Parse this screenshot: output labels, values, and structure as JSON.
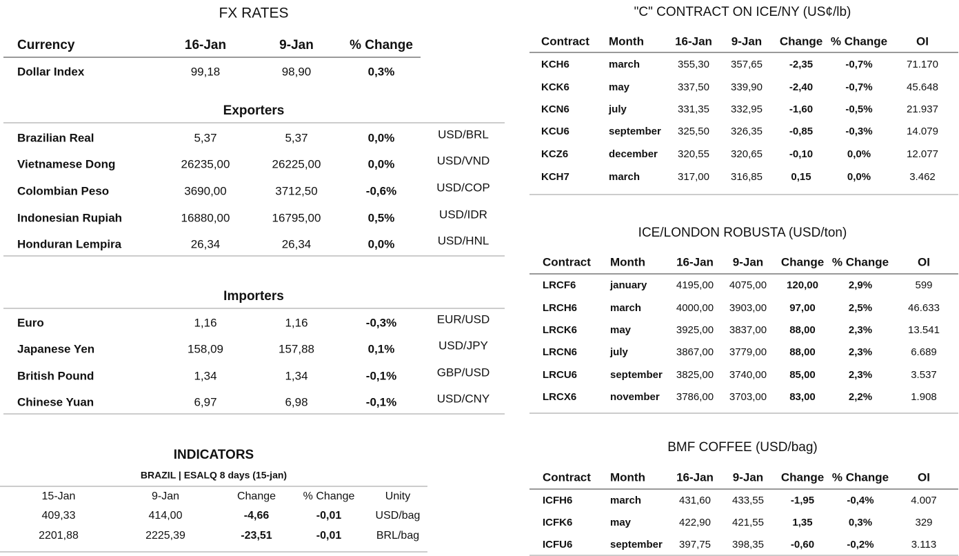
{
  "fx": {
    "title": "FX RATES",
    "header": [
      "Currency",
      "16-Jan",
      "9-Jan",
      "% Change"
    ],
    "rows": [
      {
        "cells": [
          "Dollar Index",
          "99,18",
          "98,90",
          "0,3%"
        ],
        "color": "#1f9a1f"
      }
    ],
    "exporters": {
      "title": "Exporters",
      "rows": [
        {
          "cells": [
            "Brazilian Real",
            "5,37",
            "5,37",
            "0,0%",
            "USD/BRL"
          ],
          "color": "#e00000"
        },
        {
          "cells": [
            "Vietnamese Dong",
            "26235,00",
            "26225,00",
            "0,0%",
            "USD/VND"
          ],
          "color": "#1f9a1f"
        },
        {
          "cells": [
            "Colombian Peso",
            "3690,00",
            "3712,50",
            "-0,6%",
            "USD/COP"
          ],
          "color": "#e00000"
        },
        {
          "cells": [
            "Indonesian Rupiah",
            "16880,00",
            "16795,00",
            "0,5%",
            "USD/IDR"
          ],
          "color": "#1f9a1f"
        },
        {
          "cells": [
            "Honduran Lempira",
            "26,34",
            "26,34",
            "0,0%",
            "USD/HNL"
          ],
          "color": "#1f9a1f"
        }
      ]
    },
    "importers": {
      "title": "Importers",
      "rows": [
        {
          "cells": [
            "Euro",
            "1,16",
            "1,16",
            "-0,3%",
            "EUR/USD"
          ],
          "color": "#e00000"
        },
        {
          "cells": [
            "Japanese Yen",
            "158,09",
            "157,88",
            "0,1%",
            "USD/JPY"
          ],
          "color": "#1f9a1f"
        },
        {
          "cells": [
            "British Pound",
            "1,34",
            "1,34",
            "-0,1%",
            "GBP/USD"
          ],
          "color": "#e00000"
        },
        {
          "cells": [
            "Chinese Yuan",
            "6,97",
            "6,98",
            "-0,1%",
            "USD/CNY"
          ],
          "color": "#e00000"
        }
      ]
    }
  },
  "indicators": {
    "title": "INDICATORS",
    "subtitle": "BRAZIL | ESALQ 8 days (15-jan)",
    "header": [
      "15-Jan",
      "9-Jan",
      "Change",
      "% Change",
      "Unity"
    ],
    "rows": [
      {
        "cells": [
          "409,33",
          "414,00",
          "-4,66",
          "-0,01",
          "USD/bag"
        ],
        "color": "#e00000"
      },
      {
        "cells": [
          "2201,88",
          "2225,39",
          "-23,51",
          "-0,01",
          "BRL/bag"
        ],
        "color": "#e00000"
      }
    ]
  },
  "ny": {
    "title": "\"C\" CONTRACT ON ICE/NY (US¢/lb)",
    "header": [
      "Contract",
      "Month",
      "16-Jan",
      "9-Jan",
      "Change",
      "% Change",
      "OI"
    ],
    "rows": [
      {
        "cells": [
          "KCH6",
          "march",
          "355,30",
          "357,65",
          "-2,35",
          "-0,7%",
          "71.170"
        ],
        "color": "#e00000"
      },
      {
        "cells": [
          "KCK6",
          "may",
          "337,50",
          "339,90",
          "-2,40",
          "-0,7%",
          "45.648"
        ],
        "color": "#e00000"
      },
      {
        "cells": [
          "KCN6",
          "july",
          "331,35",
          "332,95",
          "-1,60",
          "-0,5%",
          "21.937"
        ],
        "color": "#e00000"
      },
      {
        "cells": [
          "KCU6",
          "september",
          "325,50",
          "326,35",
          "-0,85",
          "-0,3%",
          "14.079"
        ],
        "color": "#e00000"
      },
      {
        "cells": [
          "KCZ6",
          "december",
          "320,55",
          "320,65",
          "-0,10",
          "0,0%",
          "12.077"
        ],
        "color": "#e00000"
      },
      {
        "cells": [
          "KCH7",
          "march",
          "317,00",
          "316,85",
          "0,15",
          "0,0%",
          "3.462"
        ],
        "color": "#1f9a1f"
      }
    ]
  },
  "london": {
    "title": "ICE/LONDON ROBUSTA (USD/ton)",
    "header": [
      "Contract",
      "Month",
      "16-Jan",
      "9-Jan",
      "Change",
      "% Change",
      "OI"
    ],
    "rows": [
      {
        "cells": [
          "LRCF6",
          "january",
          "4195,00",
          "4075,00",
          "120,00",
          "2,9%",
          "599"
        ],
        "color": "#1f9a1f"
      },
      {
        "cells": [
          "LRCH6",
          "march",
          "4000,00",
          "3903,00",
          "97,00",
          "2,5%",
          "46.633"
        ],
        "color": "#1f9a1f"
      },
      {
        "cells": [
          "LRCK6",
          "may",
          "3925,00",
          "3837,00",
          "88,00",
          "2,3%",
          "13.541"
        ],
        "color": "#1f9a1f"
      },
      {
        "cells": [
          "LRCN6",
          "july",
          "3867,00",
          "3779,00",
          "88,00",
          "2,3%",
          "6.689"
        ],
        "color": "#1f9a1f"
      },
      {
        "cells": [
          "LRCU6",
          "september",
          "3825,00",
          "3740,00",
          "85,00",
          "2,3%",
          "3.537"
        ],
        "color": "#1f9a1f"
      },
      {
        "cells": [
          "LRCX6",
          "november",
          "3786,00",
          "3703,00",
          "83,00",
          "2,2%",
          "1.908"
        ],
        "color": "#1f9a1f"
      }
    ]
  },
  "bmf": {
    "title": "BMF COFFEE (USD/bag)",
    "header": [
      "Contract",
      "Month",
      "16-Jan",
      "9-Jan",
      "Change",
      "% Change",
      "OI"
    ],
    "rows": [
      {
        "cells": [
          "ICFH6",
          "march",
          "431,60",
          "433,55",
          "-1,95",
          "-0,4%",
          "4.007"
        ],
        "color": "#e00000"
      },
      {
        "cells": [
          "ICFK6",
          "may",
          "422,90",
          "421,55",
          "1,35",
          "0,3%",
          "329"
        ],
        "color": "#1f9a1f"
      },
      {
        "cells": [
          "ICFU6",
          "september",
          "397,75",
          "398,35",
          "-0,60",
          "-0,2%",
          "3.113"
        ],
        "color": "#e00000"
      }
    ]
  }
}
